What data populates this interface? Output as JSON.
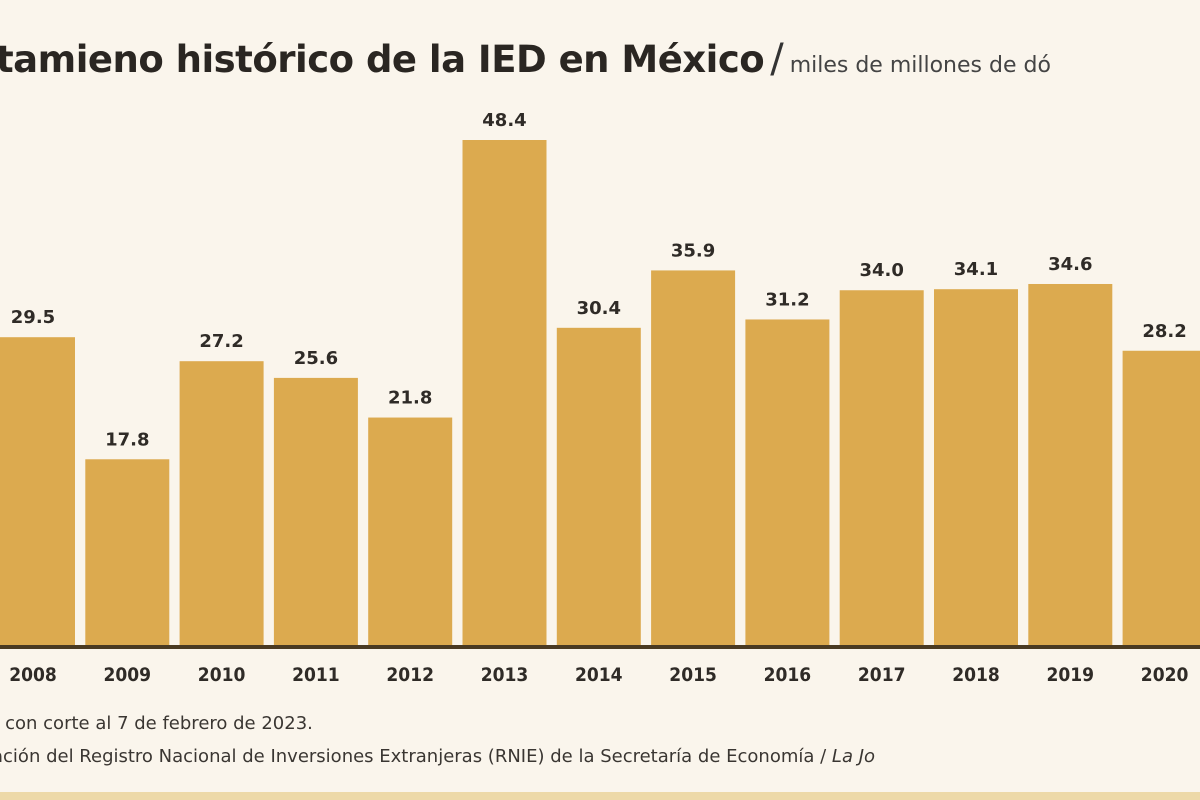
{
  "chart_data": {
    "type": "bar",
    "title": "tamieno histórico de la IED en México",
    "subtitle": "miles de millones de dó",
    "categories": [
      "2008",
      "2009",
      "2010",
      "2011",
      "2012",
      "2013",
      "2014",
      "2015",
      "2016",
      "2017",
      "2018",
      "2019",
      "2020"
    ],
    "values": [
      29.5,
      17.8,
      27.2,
      25.6,
      21.8,
      48.4,
      30.4,
      35.9,
      31.2,
      34.0,
      34.1,
      34.6,
      28.2
    ],
    "value_labels": [
      "29.5",
      "17.8",
      "27.2",
      "25.6",
      "21.8",
      "48.4",
      "30.4",
      "35.9",
      "31.2",
      "34.0",
      "34.1",
      "34.6",
      "28.2"
    ],
    "xlabel": "",
    "ylabel": "",
    "ylim": [
      0,
      50
    ],
    "grid": false,
    "bar_color": "#dcaa4f",
    "baseline_color": "#4a3a22"
  },
  "notes": {
    "line1": "r con corte al 7 de febrero de 2023.",
    "line2": "ación del Registro Nacional de Inversiones Extranjeras (RNIE)  de la Secretaría de Economía / ",
    "line2_italic": "La Jo"
  }
}
